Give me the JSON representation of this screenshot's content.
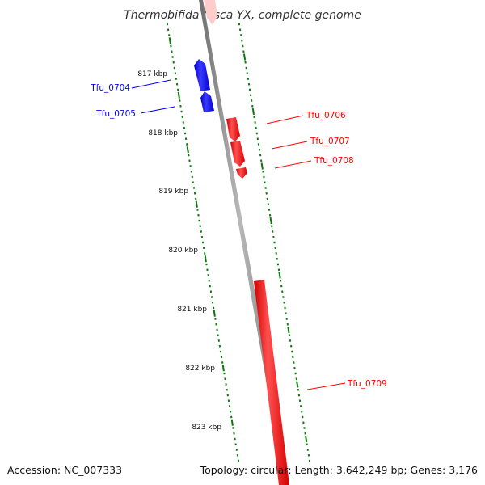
{
  "title": "Thermobifida fusca YX, complete genome",
  "footer": {
    "accession": "Accession: NC_007333",
    "summary": "Topology: circular; Length: 3,642,249 bp; Genes: 3,176"
  },
  "colors": {
    "backbone": "#8a8a8a",
    "forward": "#ff0000",
    "reverse": "#0000ff",
    "ticks": "#0a7a0a"
  },
  "ruler": {
    "unit": "kbp",
    "labels": [
      "817 kbp",
      "818 kbp",
      "819 kbp",
      "820 kbp",
      "821 kbp",
      "822 kbp",
      "823 kbp"
    ]
  },
  "genes": [
    {
      "name": "Tfu_0704",
      "strand": "reverse"
    },
    {
      "name": "Tfu_0705",
      "strand": "reverse"
    },
    {
      "name": "Tfu_0706",
      "strand": "forward"
    },
    {
      "name": "Tfu_0707",
      "strand": "forward"
    },
    {
      "name": "Tfu_0708",
      "strand": "forward"
    },
    {
      "name": "Tfu_0709",
      "strand": "forward"
    }
  ]
}
